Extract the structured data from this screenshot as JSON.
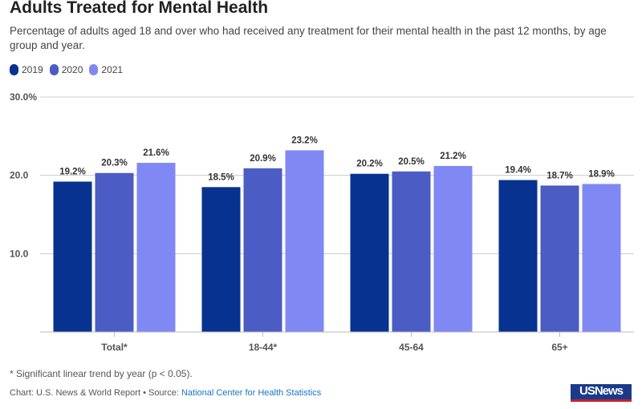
{
  "title": "Adults Treated for Mental Health",
  "subtitle": "Percentage of adults aged 18 and over who had received any treatment for their mental health in the past 12 months, by age group and year.",
  "footnote": "* Significant linear trend by year (p < 0.05).",
  "credit_prefix": "Chart: U.S. News & World Report • Source: ",
  "source_link": "National Center for Health Statistics",
  "logo_text": "USNews",
  "chart_data": {
    "type": "bar",
    "categories": [
      "Total*",
      "18-44*",
      "45-64",
      "65+"
    ],
    "series": [
      {
        "name": "2019",
        "color": "#07328f",
        "values": [
          19.2,
          18.5,
          20.2,
          19.4
        ],
        "labels": [
          "19.2%",
          "18.5%",
          "20.2%",
          "19.4%"
        ]
      },
      {
        "name": "2020",
        "color": "#4b5cc4",
        "values": [
          20.3,
          20.9,
          20.5,
          18.7
        ],
        "labels": [
          "20.3%",
          "20.9%",
          "20.5%",
          "18.7%"
        ]
      },
      {
        "name": "2021",
        "color": "#8088f4",
        "values": [
          21.6,
          23.2,
          21.2,
          18.9
        ],
        "labels": [
          "21.6%",
          "23.2%",
          "21.2%",
          "18.9%"
        ]
      }
    ],
    "ylim": [
      0,
      30
    ],
    "yticks": [
      10,
      20,
      30
    ],
    "ytick_labels": [
      "10.0",
      "20.0",
      "30.0%"
    ],
    "grid": true,
    "legend": "top-left"
  }
}
